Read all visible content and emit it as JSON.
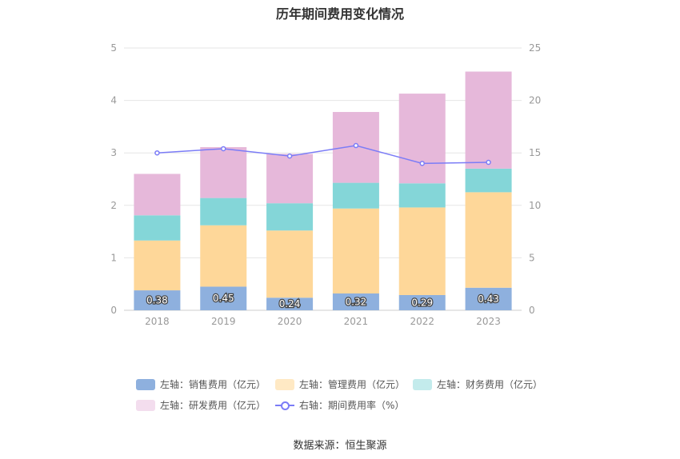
{
  "chart_data": {
    "type": "bar",
    "title": "历年期间费用变化情况",
    "categories": [
      "2018",
      "2019",
      "2020",
      "2021",
      "2022",
      "2023"
    ],
    "y_left": {
      "ylim": [
        0,
        5
      ],
      "ticks": [
        "0",
        "1",
        "2",
        "3",
        "4",
        "5"
      ]
    },
    "y_right": {
      "ylim": [
        0,
        25
      ],
      "ticks": [
        "0",
        "5",
        "10",
        "15",
        "20",
        "25"
      ]
    },
    "stacked": true,
    "series": [
      {
        "name": "左轴：销售费用（亿元）",
        "axis": "left",
        "kind": "bar",
        "color": "#8EB0DE",
        "values": [
          0.38,
          0.45,
          0.24,
          0.32,
          0.29,
          0.43
        ],
        "labels": [
          "0.38",
          "0.45",
          "0.24",
          "0.32",
          "0.29",
          "0.43"
        ]
      },
      {
        "name": "左轴：管理费用（亿元）",
        "axis": "left",
        "kind": "bar",
        "color": "#FED799",
        "values": [
          0.95,
          1.17,
          1.28,
          1.62,
          1.67,
          1.82
        ]
      },
      {
        "name": "左轴：财务费用（亿元）",
        "axis": "left",
        "kind": "bar",
        "color": "#84D6D8",
        "values": [
          0.48,
          0.52,
          0.52,
          0.49,
          0.46,
          0.45
        ]
      },
      {
        "name": "左轴：研发费用（亿元）",
        "axis": "left",
        "kind": "bar",
        "color": "#E6B8DA",
        "values": [
          0.79,
          0.97,
          0.94,
          1.35,
          1.71,
          1.85
        ]
      },
      {
        "name": "右轴：期间费用率（%）",
        "axis": "right",
        "kind": "line",
        "color": "#7B7CF7",
        "values": [
          15.0,
          15.4,
          14.7,
          15.7,
          14.0,
          14.1
        ]
      }
    ],
    "grid": true,
    "legend_position": "bottom"
  },
  "legend_colors": {
    "sales": "#8EB0DE",
    "admin": "#FFE9C4",
    "finance": "#C3EBEC",
    "rnd": "#F3DDEE",
    "rate": "#7B7CF7"
  },
  "source": "数据来源：恒生聚源"
}
